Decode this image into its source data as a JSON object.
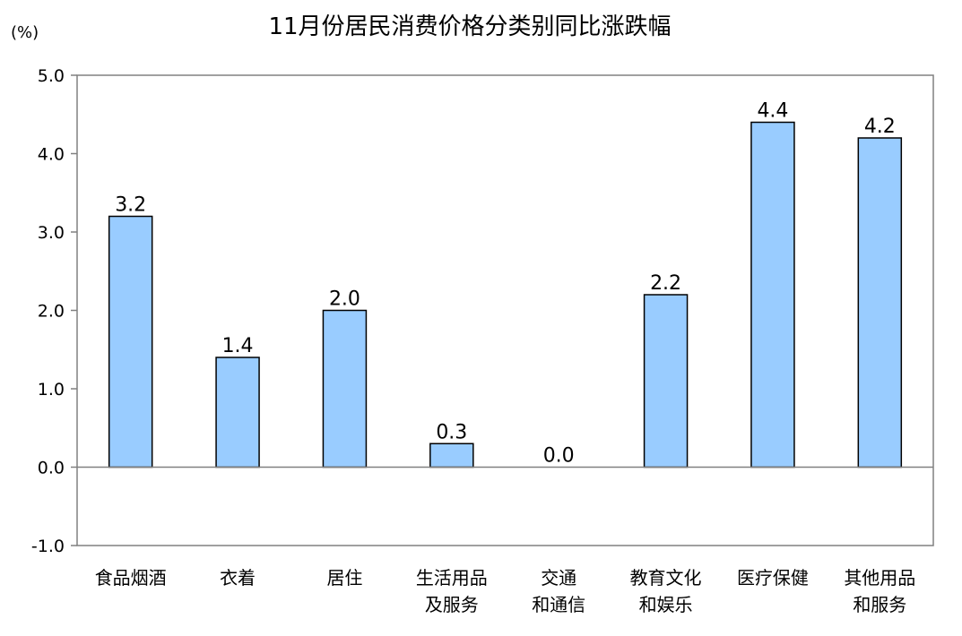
{
  "chart_data": {
    "type": "bar",
    "title": "11月份居民消费价格分类别同比涨跌幅",
    "unit_label": "(%)",
    "xlabel": "",
    "ylabel": "",
    "ylim": [
      -1.0,
      5.0
    ],
    "yticks": [
      "5.0",
      "4.0",
      "3.0",
      "2.0",
      "1.0",
      "0.0",
      "-1.0"
    ],
    "ytick_values": [
      5,
      4,
      3,
      2,
      1,
      0,
      -1
    ],
    "categories": [
      [
        "食品烟酒"
      ],
      [
        "衣着"
      ],
      [
        "居住"
      ],
      [
        "生活用品",
        "及服务"
      ],
      [
        "交通",
        "和通信"
      ],
      [
        "教育文化",
        "和娱乐"
      ],
      [
        "医疗保健"
      ],
      [
        "其他用品",
        "和服务"
      ]
    ],
    "values": [
      3.2,
      1.4,
      2.0,
      0.3,
      0.0,
      2.2,
      4.4,
      4.2
    ],
    "value_labels": [
      "3.2",
      "1.4",
      "2.0",
      "0.3",
      "0.0",
      "2.2",
      "4.4",
      "4.2"
    ],
    "grid": false,
    "legend": "none",
    "colors": {
      "bar_fill": "#99CCFF",
      "bar_stroke": "#000000",
      "frame": "#808080",
      "zero_line": "#808080"
    }
  }
}
